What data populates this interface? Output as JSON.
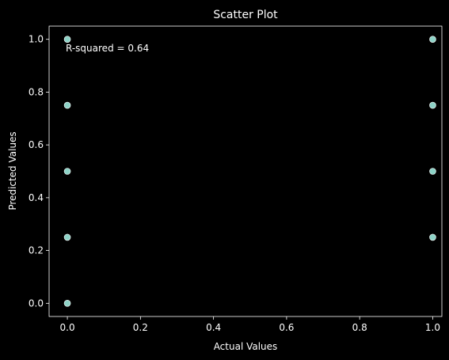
{
  "chart_data": {
    "type": "scatter",
    "title": "Scatter Plot",
    "xlabel": "Actual Values",
    "ylabel": "Predicted Values",
    "xlim": [
      -0.05,
      1.025
    ],
    "ylim": [
      -0.05,
      1.05
    ],
    "x_ticks": [
      "0.0",
      "0.2",
      "0.4",
      "0.6",
      "0.8",
      "1.0"
    ],
    "x_tick_values": [
      0,
      0.2,
      0.4,
      0.6,
      0.8,
      1.0
    ],
    "y_ticks": [
      "0.0",
      "0.2",
      "0.4",
      "0.6",
      "0.8",
      "1.0"
    ],
    "y_tick_values": [
      0,
      0.2,
      0.4,
      0.6,
      0.8,
      1.0
    ],
    "grid": false,
    "annotation": "R-squared = 0.64",
    "points": [
      {
        "x": 0,
        "y": 0
      },
      {
        "x": 0,
        "y": 0.25
      },
      {
        "x": 0,
        "y": 0.5
      },
      {
        "x": 0,
        "y": 0.75
      },
      {
        "x": 0,
        "y": 1.0
      },
      {
        "x": 1,
        "y": 0.25
      },
      {
        "x": 1,
        "y": 0.5
      },
      {
        "x": 1,
        "y": 0.75
      },
      {
        "x": 1,
        "y": 1.0
      }
    ],
    "colors": {
      "background": "#000000",
      "marker_fill": "#8dd3c7",
      "marker_edge": "#ffffff",
      "axes": "#ffffff",
      "text": "#ffffff"
    }
  }
}
